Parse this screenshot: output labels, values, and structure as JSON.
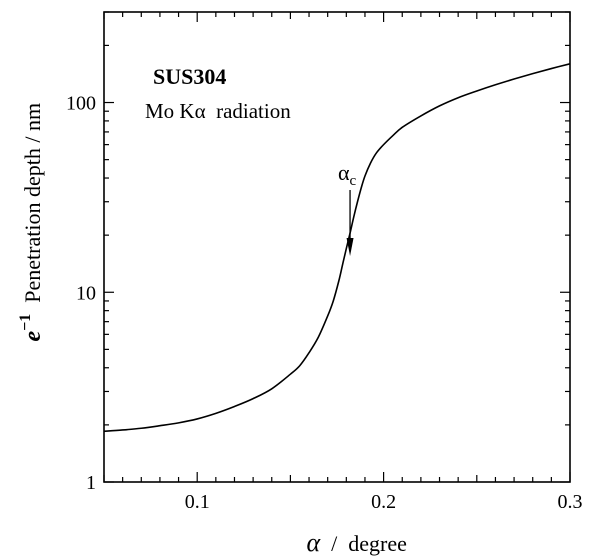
{
  "chart_data": {
    "type": "line",
    "title": "",
    "xlabel": {
      "symbol": "α",
      "rest": "  /  degree"
    },
    "ylabel": {
      "prefix": "e",
      "superscript": "−1",
      "rest": "  Penetration depth / nm"
    },
    "xlim": [
      0.05,
      0.3
    ],
    "ylim": [
      1,
      300
    ],
    "y_scale": "log",
    "x_ticks": [
      0.1,
      0.2,
      0.3
    ],
    "x_tick_labels": [
      "0.1",
      "0.2",
      "0.3"
    ],
    "y_ticks": [
      1,
      10,
      100
    ],
    "y_tick_labels": [
      "1",
      "10",
      "100"
    ],
    "grid": false,
    "legend": "none",
    "annotations": {
      "sample": "SUS304",
      "radiation": "Mo Kα  radiation",
      "critical_angle_symbol": "α",
      "critical_angle_subscript": "c",
      "critical_angle_x": 0.182
    },
    "series": [
      {
        "x": [
          0.05,
          0.06,
          0.07,
          0.08,
          0.09,
          0.1,
          0.11,
          0.12,
          0.13,
          0.14,
          0.15,
          0.155,
          0.16,
          0.165,
          0.17,
          0.173,
          0.176,
          0.178,
          0.18,
          0.182,
          0.184,
          0.186,
          0.188,
          0.19,
          0.193,
          0.196,
          0.2,
          0.205,
          0.21,
          0.22,
          0.23,
          0.24,
          0.25,
          0.26,
          0.27,
          0.28,
          0.29,
          0.3
        ],
        "y": [
          1.85,
          1.88,
          1.92,
          1.98,
          2.05,
          2.15,
          2.3,
          2.5,
          2.75,
          3.1,
          3.7,
          4.1,
          4.8,
          5.8,
          7.5,
          9.0,
          11.5,
          14.0,
          17.0,
          20.5,
          25.0,
          30.0,
          35.5,
          41.0,
          48.0,
          54.0,
          60.0,
          67.0,
          74.0,
          85.0,
          96.0,
          106.0,
          115.0,
          124.0,
          133.0,
          142.0,
          151.0,
          160.0
        ]
      }
    ]
  }
}
